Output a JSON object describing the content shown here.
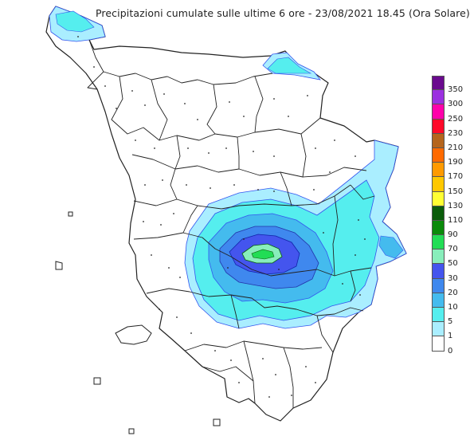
{
  "title": "Precipitazioni cumulate sulle ultime 6 ore - 23/08/2021 18.45 (Ora Solare)",
  "legend": [
    {
      "label": "350",
      "color": "#6a0a8e"
    },
    {
      "label": "300",
      "color": "#9b30e0"
    },
    {
      "label": "250",
      "color": "#ff00aa"
    },
    {
      "label": "230",
      "color": "#ff0a2a"
    },
    {
      "label": "210",
      "color": "#b5651d"
    },
    {
      "label": "190",
      "color": "#ff6a00"
    },
    {
      "label": "170",
      "color": "#ff9a00"
    },
    {
      "label": "150",
      "color": "#ffc800"
    },
    {
      "label": "130",
      "color": "#ffff33"
    },
    {
      "label": "110",
      "color": "#0a5c0a"
    },
    {
      "label": "90",
      "color": "#0a8a0a"
    },
    {
      "label": "70",
      "color": "#22dd55"
    },
    {
      "label": "50",
      "color": "#88eebb"
    },
    {
      "label": "30",
      "color": "#4455ee"
    },
    {
      "label": "20",
      "color": "#3f88ee"
    },
    {
      "label": "10",
      "color": "#44bbee"
    },
    {
      "label": "5",
      "color": "#55eeee"
    },
    {
      "label": "1",
      "color": "#aaeeff"
    },
    {
      "label": "0",
      "color": "#ffffff"
    }
  ]
}
